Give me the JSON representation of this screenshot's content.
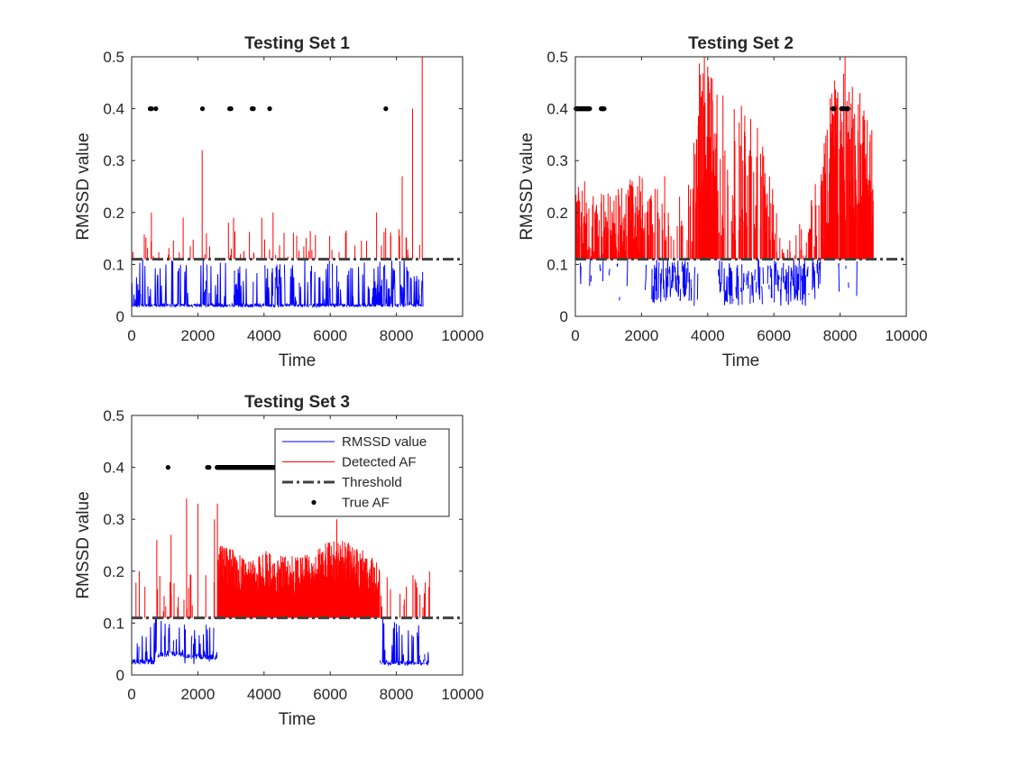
{
  "chart_data": [
    {
      "type": "line",
      "title": "Testing Set 1",
      "xlabel": "Time",
      "ylabel": "RMSSD value",
      "xlim": [
        0,
        10000
      ],
      "ylim": [
        0,
        0.5
      ],
      "xticks": [
        "0",
        "2000",
        "4000",
        "6000",
        "8000",
        "10000"
      ],
      "yticks": [
        "0",
        "0.1",
        "0.2",
        "0.3",
        "0.4",
        "0.5"
      ],
      "threshold": 0.11,
      "series": [
        {
          "name": "RMSSD value",
          "color": "#0000ff",
          "style": "solid",
          "x_range": [
            0,
            8800
          ],
          "baseline": 0.018,
          "spread": [
            0.01,
            0.11
          ]
        },
        {
          "name": "Detected AF",
          "color": "#ff0000",
          "style": "solid",
          "peaks": [
            [
              600,
              0.2
            ],
            [
              1550,
              0.19
            ],
            [
              2130,
              0.32
            ],
            [
              2920,
              0.18
            ],
            [
              3080,
              0.19
            ],
            [
              3290,
              0.12
            ],
            [
              3930,
              0.19
            ],
            [
              4270,
              0.2
            ],
            [
              7400,
              0.2
            ],
            [
              7680,
              0.17
            ],
            [
              8170,
              0.27
            ],
            [
              8490,
              0.4
            ],
            [
              8780,
              0.5
            ]
          ]
        },
        {
          "name": "Threshold",
          "color": "#404040",
          "style": "dashdot",
          "value": 0.11
        },
        {
          "name": "True AF",
          "color": "#000000",
          "style": "points",
          "y": 0.4,
          "x": [
            560,
            600,
            730,
            2140,
            2960,
            3000,
            3640,
            3680,
            4170,
            7680
          ]
        }
      ]
    },
    {
      "type": "line",
      "title": "Testing Set 2",
      "xlabel": "Time",
      "ylabel": "RMSSD value",
      "xlim": [
        0,
        10000
      ],
      "ylim": [
        0,
        0.5
      ],
      "xticks": [
        "0",
        "2000",
        "4000",
        "6000",
        "8000",
        "10000"
      ],
      "yticks": [
        "0",
        "0.1",
        "0.2",
        "0.3",
        "0.4",
        "0.5"
      ],
      "threshold": 0.11,
      "series": [
        {
          "name": "RMSSD value",
          "color": "#0000ff",
          "style": "solid",
          "x_range": [
            0,
            9000
          ],
          "low_segments": [
            [
              2300,
              3600
            ],
            [
              4300,
              5700
            ],
            [
              5800,
              7400
            ]
          ],
          "spread": [
            0.015,
            0.11
          ]
        },
        {
          "name": "Detected AF",
          "color": "#ff0000",
          "style": "solid",
          "envelope": [
            [
              0,
              0.18
            ],
            [
              1000,
              0.17
            ],
            [
              2000,
              0.2
            ],
            [
              3000,
              0.15
            ],
            [
              3500,
              0.2
            ],
            [
              3800,
              0.38
            ],
            [
              4200,
              0.32
            ],
            [
              4800,
              0.29
            ],
            [
              5200,
              0.3
            ],
            [
              5800,
              0.22
            ],
            [
              6200,
              0.11
            ],
            [
              6800,
              0.13
            ],
            [
              7400,
              0.2
            ],
            [
              7800,
              0.33
            ],
            [
              8200,
              0.34
            ],
            [
              8600,
              0.3
            ],
            [
              9000,
              0.26
            ]
          ],
          "peaks": [
            [
              3900,
              0.5
            ],
            [
              4100,
              0.46
            ],
            [
              7700,
              0.42
            ],
            [
              8150,
              0.5
            ],
            [
              8600,
              0.43
            ],
            [
              2700,
              0.27
            ],
            [
              280,
              0.26
            ]
          ]
        },
        {
          "name": "Threshold",
          "color": "#404040",
          "style": "dashdot",
          "value": 0.11
        },
        {
          "name": "True AF",
          "color": "#000000",
          "style": "points",
          "y": 0.4,
          "ranges": [
            [
              20,
              450
            ],
            [
              780,
              880
            ],
            [
              7780,
              7830
            ],
            [
              8040,
              8100
            ],
            [
              8180,
              8240
            ]
          ]
        }
      ]
    },
    {
      "type": "line",
      "title": "Testing Set 3",
      "xlabel": "Time",
      "ylabel": "RMSSD value",
      "xlim": [
        0,
        10000
      ],
      "ylim": [
        0,
        0.5
      ],
      "xticks": [
        "0",
        "2000",
        "4000",
        "6000",
        "8000",
        "10000"
      ],
      "yticks": [
        "0",
        "0.1",
        "0.2",
        "0.3",
        "0.4",
        "0.5"
      ],
      "threshold": 0.11,
      "legend": {
        "location": "top-right",
        "entries": [
          "RMSSD value",
          "Detected AF",
          "Threshold",
          "True AF"
        ]
      },
      "series": [
        {
          "name": "RMSSD value",
          "color": "#0000ff",
          "style": "solid",
          "x_range": [
            0,
            9000
          ],
          "baselines": [
            [
              0,
              700,
              0.02
            ],
            [
              700,
              1600,
              0.035
            ],
            [
              1600,
              2600,
              0.03
            ],
            [
              7500,
              9000,
              0.018
            ]
          ]
        },
        {
          "name": "Detected AF",
          "color": "#ff0000",
          "style": "solid",
          "envelope": [
            [
              2600,
              0.21
            ],
            [
              3000,
              0.21
            ],
            [
              3500,
              0.19
            ],
            [
              4000,
              0.2
            ],
            [
              4500,
              0.19
            ],
            [
              5000,
              0.19
            ],
            [
              5500,
              0.2
            ],
            [
              6000,
              0.22
            ],
            [
              6500,
              0.22
            ],
            [
              7000,
              0.2
            ],
            [
              7400,
              0.18
            ]
          ],
          "peaks": [
            [
              230,
              0.2
            ],
            [
              400,
              0.17
            ],
            [
              760,
              0.26
            ],
            [
              1190,
              0.27
            ],
            [
              1660,
              0.34
            ],
            [
              2000,
              0.33
            ],
            [
              2500,
              0.3
            ],
            [
              2590,
              0.33
            ],
            [
              6200,
              0.3
            ],
            [
              8300,
              0.17
            ],
            [
              8800,
              0.13
            ]
          ]
        },
        {
          "name": "Threshold",
          "color": "#404040",
          "style": "dashdot",
          "value": 0.11
        },
        {
          "name": "True AF",
          "color": "#000000",
          "style": "points",
          "y": 0.4,
          "x": [
            1100,
            2290,
            2340
          ],
          "ranges": [
            [
              2580,
              5000
            ]
          ]
        }
      ]
    }
  ]
}
